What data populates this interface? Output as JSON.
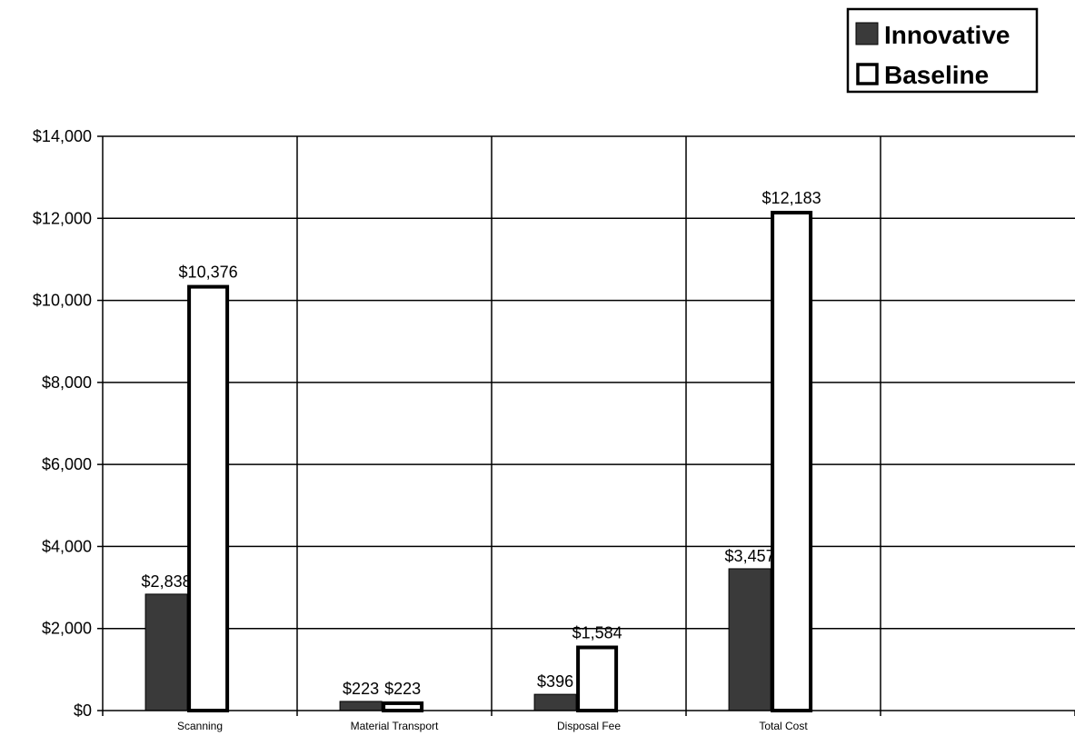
{
  "chart_data": {
    "type": "bar",
    "title": "",
    "xlabel": "",
    "ylabel": "",
    "categories": [
      "Scanning",
      "Material Transport",
      "Disposal Fee",
      "Total Cost"
    ],
    "series": [
      {
        "name": "Innovative",
        "values": [
          2838,
          223,
          396,
          3457
        ],
        "labels": [
          "$2,838",
          "$223",
          "$396",
          "$3,457"
        ],
        "color": "#3a3a3a"
      },
      {
        "name": "Baseline",
        "values": [
          10376,
          223,
          1584,
          12183
        ],
        "labels": [
          "$10,376",
          "$223",
          "$1,584",
          "$12,183"
        ],
        "color": "#ffffff"
      }
    ],
    "ylim": [
      0,
      14000
    ],
    "yticks": [
      0,
      2000,
      4000,
      6000,
      8000,
      10000,
      12000,
      14000
    ],
    "ytick_labels": [
      "$0",
      "$2,000",
      "$4,000",
      "$6,000",
      "$8,000",
      "$10,000",
      "$12,000",
      "$14,000"
    ],
    "grid": true,
    "legend": "top-right"
  }
}
